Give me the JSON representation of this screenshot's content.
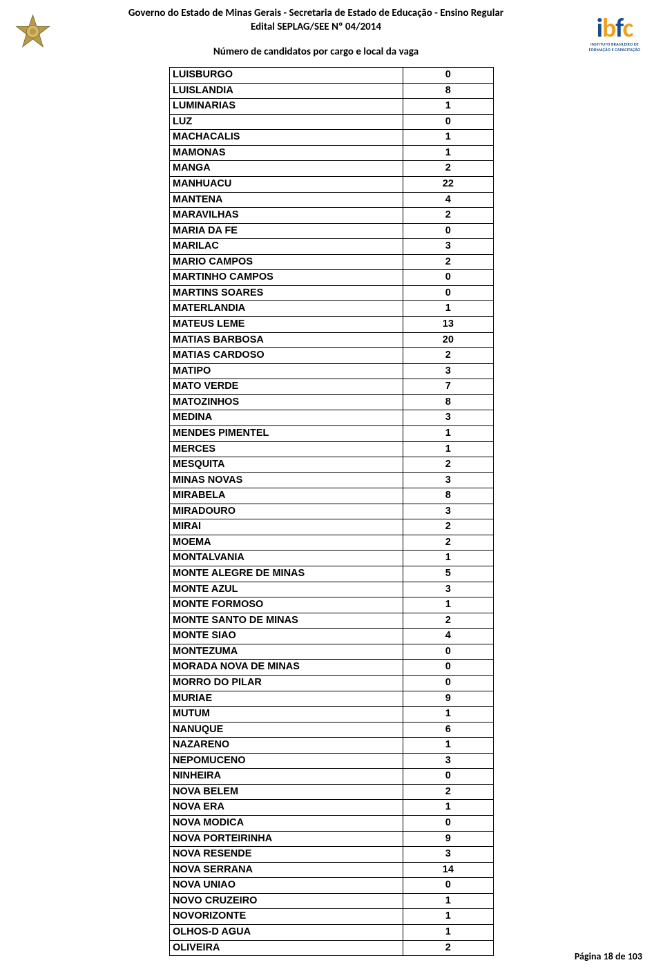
{
  "header": {
    "title_line1": "Governo do Estado de Minas Gerais - Secretaria de Estado de Educação - Ensino Regular",
    "title_line2": "Edital SEPLAG/SEE Nº 04/2014",
    "subtitle": "Número de candidatos por cargo e local da vaga",
    "logo_text_i": "i",
    "logo_text_b": "b",
    "logo_text_f": "f",
    "logo_text_c": "c",
    "logo_subtitle": "INSTITUTO BRASILEIRO DE FORMAÇÃO E CAPACITAÇÃO"
  },
  "table": {
    "rows": [
      {
        "name": "LUISBURGO",
        "value": "0"
      },
      {
        "name": "LUISLANDIA",
        "value": "8"
      },
      {
        "name": "LUMINARIAS",
        "value": "1"
      },
      {
        "name": "LUZ",
        "value": "0"
      },
      {
        "name": "MACHACALIS",
        "value": "1"
      },
      {
        "name": "MAMONAS",
        "value": "1"
      },
      {
        "name": "MANGA",
        "value": "2"
      },
      {
        "name": "MANHUACU",
        "value": "22"
      },
      {
        "name": "MANTENA",
        "value": "4"
      },
      {
        "name": "MARAVILHAS",
        "value": "2"
      },
      {
        "name": "MARIA DA FE",
        "value": "0"
      },
      {
        "name": "MARILAC",
        "value": "3"
      },
      {
        "name": "MARIO CAMPOS",
        "value": "2"
      },
      {
        "name": "MARTINHO CAMPOS",
        "value": "0"
      },
      {
        "name": "MARTINS SOARES",
        "value": "0"
      },
      {
        "name": "MATERLANDIA",
        "value": "1"
      },
      {
        "name": "MATEUS LEME",
        "value": "13"
      },
      {
        "name": "MATIAS BARBOSA",
        "value": "20"
      },
      {
        "name": "MATIAS CARDOSO",
        "value": "2"
      },
      {
        "name": "MATIPO",
        "value": "3"
      },
      {
        "name": "MATO VERDE",
        "value": "7"
      },
      {
        "name": "MATOZINHOS",
        "value": "8"
      },
      {
        "name": "MEDINA",
        "value": "3"
      },
      {
        "name": "MENDES PIMENTEL",
        "value": "1"
      },
      {
        "name": "MERCES",
        "value": "1"
      },
      {
        "name": "MESQUITA",
        "value": "2"
      },
      {
        "name": "MINAS NOVAS",
        "value": "3"
      },
      {
        "name": "MIRABELA",
        "value": "8"
      },
      {
        "name": "MIRADOURO",
        "value": "3"
      },
      {
        "name": "MIRAI",
        "value": "2"
      },
      {
        "name": "MOEMA",
        "value": "2"
      },
      {
        "name": "MONTALVANIA",
        "value": "1"
      },
      {
        "name": "MONTE ALEGRE DE MINAS",
        "value": "5"
      },
      {
        "name": "MONTE AZUL",
        "value": "3"
      },
      {
        "name": "MONTE FORMOSO",
        "value": "1"
      },
      {
        "name": "MONTE SANTO DE MINAS",
        "value": "2"
      },
      {
        "name": "MONTE SIAO",
        "value": "4"
      },
      {
        "name": "MONTEZUMA",
        "value": "0"
      },
      {
        "name": "MORADA NOVA DE MINAS",
        "value": "0"
      },
      {
        "name": "MORRO DO PILAR",
        "value": "0"
      },
      {
        "name": "MURIAE",
        "value": "9"
      },
      {
        "name": "MUTUM",
        "value": "1"
      },
      {
        "name": "NANUQUE",
        "value": "6"
      },
      {
        "name": "NAZARENO",
        "value": "1"
      },
      {
        "name": "NEPOMUCENO",
        "value": "3"
      },
      {
        "name": "NINHEIRA",
        "value": "0"
      },
      {
        "name": "NOVA BELEM",
        "value": "2"
      },
      {
        "name": "NOVA ERA",
        "value": "1"
      },
      {
        "name": "NOVA MODICA",
        "value": "0"
      },
      {
        "name": "NOVA PORTEIRINHA",
        "value": "9"
      },
      {
        "name": "NOVA RESENDE",
        "value": "3"
      },
      {
        "name": "NOVA SERRANA",
        "value": "14"
      },
      {
        "name": "NOVA UNIAO",
        "value": "0"
      },
      {
        "name": "NOVO CRUZEIRO",
        "value": "1"
      },
      {
        "name": "NOVORIZONTE",
        "value": "1"
      },
      {
        "name": "OLHOS-D AGUA",
        "value": "1"
      },
      {
        "name": "OLIVEIRA",
        "value": "2"
      }
    ]
  },
  "footer": {
    "page_text": "Página 18 de 103"
  },
  "colors": {
    "text": "#000000",
    "border": "#000000",
    "background": "#ffffff",
    "logo_blue": "#1a4b8c",
    "logo_gold": "#f0a020"
  }
}
